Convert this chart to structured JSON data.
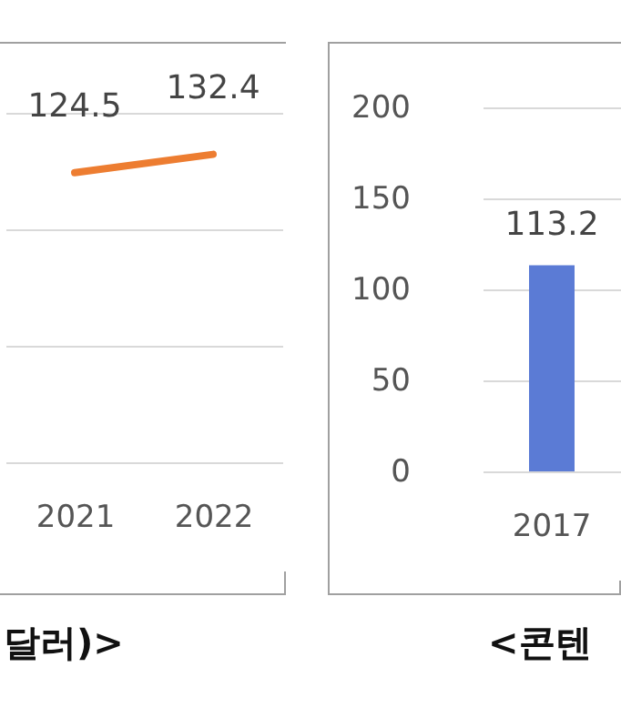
{
  "chart_data": [
    {
      "type": "line",
      "categories": [
        "2021",
        "2022"
      ],
      "values": [
        124.5,
        132.4
      ],
      "color": "#ed7d31",
      "data_labels": true,
      "grid": "y",
      "ylim": [
        0,
        180
      ],
      "yticks": [
        {
          "value": 0,
          "label": null
        },
        {
          "value": 50,
          "label": null
        },
        {
          "value": 100,
          "label": null
        },
        {
          "value": 150,
          "label": null
        }
      ],
      "tick_labels": "x",
      "annotations": [
        "달러)>"
      ]
    },
    {
      "type": "bar",
      "categories": [
        "2017"
      ],
      "values": [
        113.2
      ],
      "color": "#5b7bd5",
      "data_labels": true,
      "grid": "y",
      "ylim": [
        0,
        200
      ],
      "yticks": [
        0,
        50,
        100,
        150,
        200
      ],
      "annotations": [
        "<콘텐"
      ]
    }
  ]
}
